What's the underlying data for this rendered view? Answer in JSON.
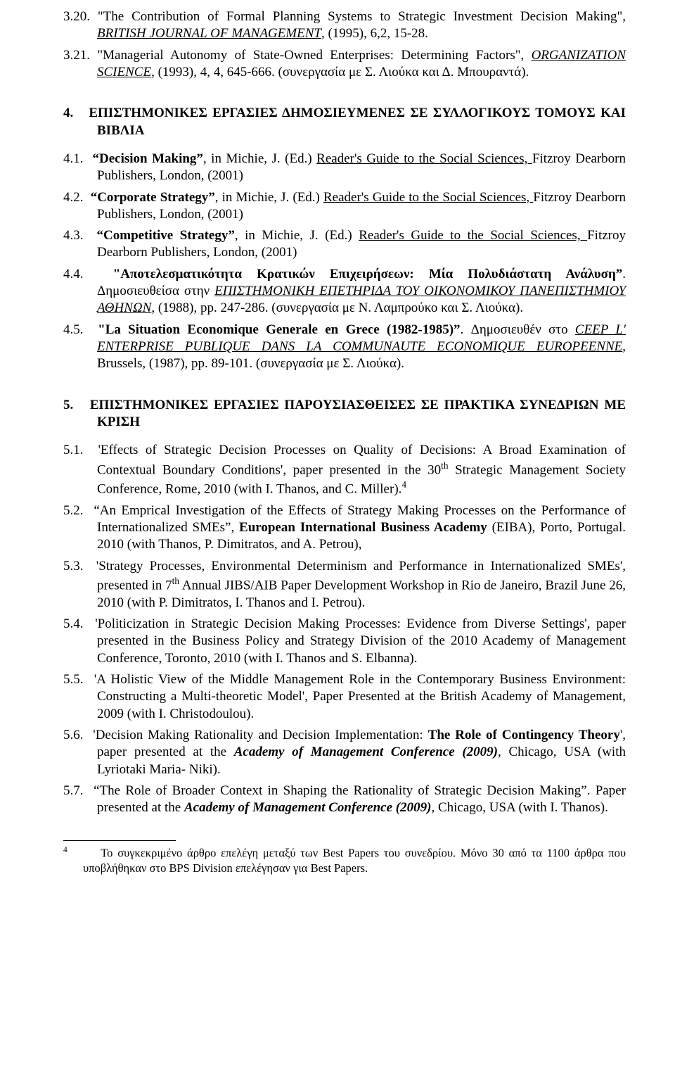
{
  "s3": {
    "e20": {
      "num": "3.20.",
      "pre": "\"The Contribution of Formal Planning Systems to Strategic Investment Decision Making\", ",
      "journal": "BRITISH JOURNAL OF MANAGEMENT",
      "post": ", (1995), 6,2, 15-28."
    },
    "e21": {
      "num": "3.21.",
      "pre": "\"Managerial Autonomy of State-Owned Enterprises: Determining Factors\", ",
      "journal": "ORGANIZATION SCIENCE",
      "post": ", (1993), 4, 4, 645-666. (συνεργασία με Σ. Λιούκα και Δ. Μπουραντά)."
    }
  },
  "s4": {
    "head_num": "4.",
    "head_text": "ΕΠΙΣΤΗΜΟΝΙΚΕΣ ΕΡΓΑΣΙΕΣ ΔΗΜΟΣΙΕΥΜΕΝΕΣ ΣΕ ΣΥΛΛΟΓΙΚΟΥΣ ΤΟΜΟΥΣ ΚΑΙ ΒΙΒΛΙΑ",
    "e1": {
      "num": "4.1.",
      "title": "“Decision Making”",
      "mid": ", in Michie, J. (Ed.) ",
      "u": "Reader's Guide to the Social Sciences, ",
      "post": "Fitzroy Dearborn Publishers,  London, (2001)"
    },
    "e2": {
      "num": "4.2.",
      "title": "“Corporate Strategy”",
      "mid": ", in Michie, J. (Ed.) ",
      "u": "Reader's Guide to the Social Sciences, ",
      "post": "Fitzroy Dearborn Publishers,  London, (2001)"
    },
    "e3": {
      "num": "4.3.",
      "title": "“Competitive Strategy”",
      "mid": ", in Michie, J. (Ed.) ",
      "u": "Reader's Guide to the Social Sciences, ",
      "post": "Fitzroy Dearborn Publishers,  London, (2001)"
    },
    "e4": {
      "num": "4.4.",
      "title": "\"Αποτελεσματικότητα Κρατικών Επιχειρήσεων: Μία Πολυδιάστατη Ανάλυση”",
      "mid1": ". Δημοσιευθείσα στην ",
      "u": "ΕΠΙΣΤΗΜΟΝΙΚΗ ΕΠΕΤΗΡΙΔΑ ΤΟΥ ΟΙΚΟΝΟΜΙΚΟΥ ΠΑΝΕΠΙΣΤΗΜΙΟΥ ΑΘΗΝΩΝ",
      "post": ", (1988), pp. 247-286. (συνεργασία με Ν. Λαμπρούκο και Σ. Λιούκα)."
    },
    "e5": {
      "num": "4.5.",
      "title": "\"La Situation Economique Generale en Grece (1982-1985)”",
      "mid1": ". Δημοσιευθέν στο ",
      "u": "CEEP L' ENTERPRISE PUBLIQUE DANS LA COMMUNAUTE ECONOMIQUE EUROPEENNE",
      "post": ", Brussels, (1987), pp. 89-101. (συνεργασία με Σ. Λιούκα)."
    }
  },
  "s5": {
    "head_num": "5.",
    "head_text": "ΕΠΙΣΤΗΜΟΝΙΚΕΣ ΕΡΓΑΣΙΕΣ ΠΑΡΟΥΣΙΑΣΘΕΙΣΕΣ ΣΕ ΠΡΑΚΤΙΚΑ ΣΥΝΕΔΡΙΩΝ ΜΕ ΚΡΙΣΗ",
    "e1": {
      "num": "5.1.",
      "pre": "'Effects of Strategic Decision Processes on Quality of Decisions: A Broad Examination of Contextual Boundary Conditions', paper presented in the 30",
      "sup": "th",
      "post": " Strategic Management Society Conference, Rome, 2010 (with I. Thanos, and C. Miller).",
      "fn": "4"
    },
    "e2": {
      "num": "5.2.",
      "pre": "“An Emprical Investigation of the Effects of Strategy Making Processes on the Performance of Internationalized SMEs”, ",
      "bold": "European International Business Academy",
      "post": " (EIBA), Porto, Portugal. 2010 (with Thanos, P. Dimitratos, and A. Petrou),"
    },
    "e3": {
      "num": "5.3.",
      "pre": " 'Strategy Processes, Environmental Determinism and Performance in Internationalized SMEs', presented in 7",
      "sup": "th",
      "post": " Annual JIBS/AIB Paper Development Workshop in Rio de Janeiro, Brazil June 26, 2010 (with P. Dimitratos, I. Thanos and I. Petrou)."
    },
    "e4": {
      "num": "5.4.",
      "text": " 'Politicization in Strategic Decision Making Processes: Evidence from Diverse Settings', paper presented in the Business Policy and Strategy Division of the 2010 Academy of Management Conference, Toronto, 2010 (with I. Thanos and S. Elbanna)."
    },
    "e5": {
      "num": "5.5.",
      "text": " 'A Holistic View of the Middle Management Role in the Contemporary Business Environment: Constructing a Multi-theoretic Model', Paper Presented at the British Academy of Management, 2009 (with I. Christodoulou)."
    },
    "e6": {
      "num": "5.6.",
      "pre": "'Decision Making Rationality and Decision Implementation: ",
      "bold": "The Role of Contingency Theory",
      "mid": "', paper presented at the ",
      "ital": "Academy of Management Conference (2009)",
      "post": ", Chicago, USA (with Lyriotaki Maria- Niki)."
    },
    "e7": {
      "num": "5.7.",
      "pre": "  “The Role of Broader Context in Shaping the Rationality of Strategic Decision Making”. Paper presented at the ",
      "ital": "Academy of Management Conference (2009)",
      "post": ", Chicago, USA (with I. Thanos)."
    }
  },
  "footnote": {
    "num": "4",
    "text": "Το συγκεκριμένο άρθρο επελέγη μεταξύ των Best Papers του συνεδρίου. Μόνο 30 από τα 1100 άρθρα που υποβλήθηκαν στο BPS Division επελέγησαν για Best Papers."
  }
}
